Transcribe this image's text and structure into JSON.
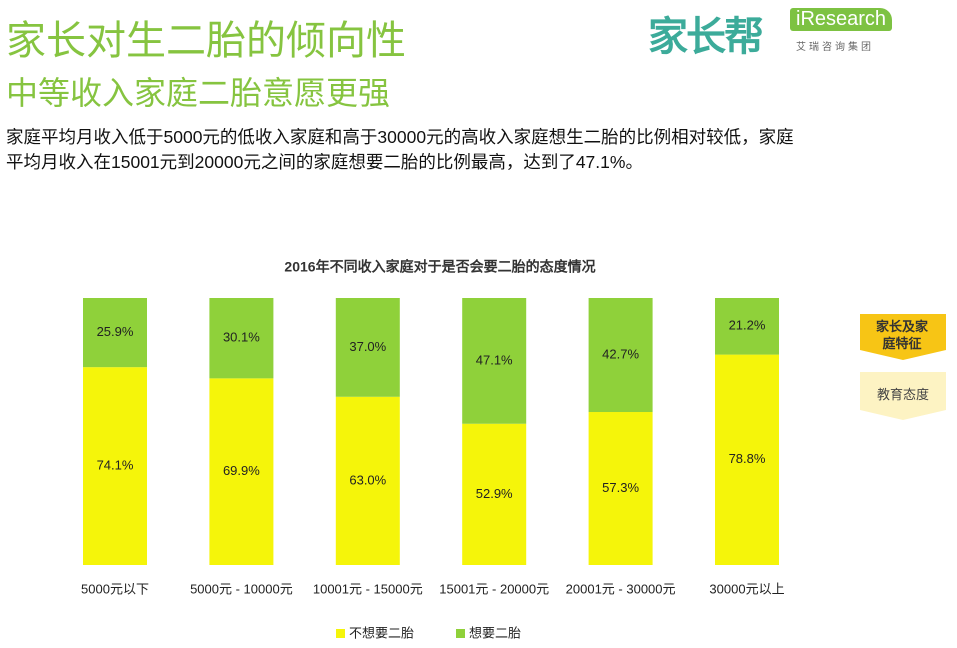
{
  "header": {
    "title": "家长对生二胎的倾向性",
    "subtitle": "中等收入家庭二胎意愿更强",
    "description": [
      "家庭平均月收入低于5000元的低收入家庭和高于30000元的高收入家庭想生二胎的比例相对较低，家庭",
      "平均月收入在15001元到20000元之间的家庭想要二胎的比例最高，达到了47.1%。"
    ]
  },
  "logos": {
    "brand": "家长帮",
    "research": "iResearch",
    "research_sub": "艾瑞咨询集团"
  },
  "tags": [
    "家长及家庭特征",
    "教育态度"
  ],
  "chart_data": {
    "type": "stacked_bar",
    "title": "2016年不同收入家庭对于是否会要二胎的态度情况",
    "categories": [
      "5000元以下",
      "5000元 - 10000元",
      "10001元 - 15000元",
      "15001元 - 20000元",
      "20001元 - 30000元",
      "30000元以上"
    ],
    "series": [
      {
        "name": "不想要二胎",
        "color": "#f5f50a",
        "values": [
          74.1,
          69.9,
          63.0,
          52.9,
          57.3,
          78.8
        ],
        "value_labels": [
          "74.1%",
          "69.9%",
          "63.0%",
          "52.9%",
          "57.3%",
          "78.8%"
        ]
      },
      {
        "name": "想要二胎",
        "color": "#8fd13a",
        "values": [
          25.9,
          30.1,
          37.0,
          47.1,
          42.7,
          21.2
        ],
        "value_labels": [
          "25.9%",
          "30.1%",
          "37.0%",
          "47.1%",
          "42.7%",
          "21.2%"
        ]
      }
    ]
  }
}
